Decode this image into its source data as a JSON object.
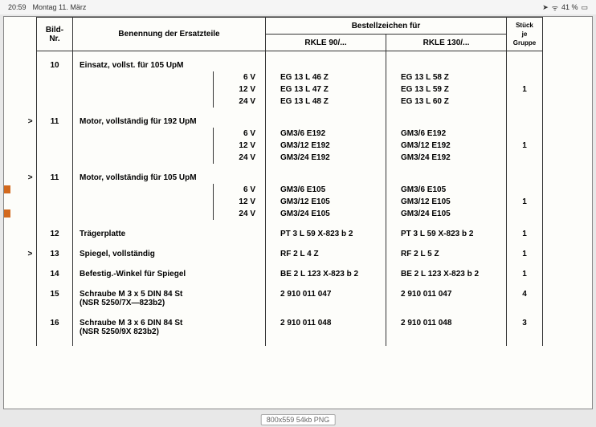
{
  "statusbar": {
    "time": "20:59",
    "date": "Montag 11. März",
    "battery": "41 %",
    "battery_icon": "■"
  },
  "header": {
    "bild_nr": "Bild-\nNr.",
    "benennung": "Benennung der Ersatzteile",
    "bestell": "Bestellzeichen für",
    "rkle90": "RKLE 90/...",
    "rkle130": "RKLE 130/...",
    "stuck": "Stück\nje\nGruppe"
  },
  "rows": [
    {
      "bild": "10",
      "ben": "Einsatz, vollst. für 105 UpM",
      "sub": [
        {
          "v": "6 V",
          "c90": "EG 13 L 46 Z",
          "c130": "EG 13 L 58 Z",
          "stk": ""
        },
        {
          "v": "12 V",
          "c90": "EG 13 L 47 Z",
          "c130": "EG 13 L 59 Z",
          "stk": "1"
        },
        {
          "v": "24 V",
          "c90": "EG 13 L 48 Z",
          "c130": "EG 13 L 60 Z",
          "stk": ""
        }
      ]
    },
    {
      "bild": "11",
      "arrow": true,
      "ben": "Motor, vollständig für 192 UpM",
      "sub": [
        {
          "v": "6 V",
          "c90": "GM3/6 E192",
          "c130": "GM3/6 E192",
          "stk": ""
        },
        {
          "v": "12 V",
          "c90": "GM3/12 E192",
          "c130": "GM3/12 E192",
          "stk": "1"
        },
        {
          "v": "24 V",
          "c90": "GM3/24 E192",
          "c130": "GM3/24 E192",
          "stk": ""
        }
      ]
    },
    {
      "bild": "11",
      "arrow": true,
      "ben": "Motor, vollständig für 105 UpM",
      "sub": [
        {
          "v": "6 V",
          "c90": "GM3/6 E105",
          "c130": "GM3/6 E105",
          "stk": ""
        },
        {
          "v": "12 V",
          "c90": "GM3/12 E105",
          "c130": "GM3/12 E105",
          "stk": "1"
        },
        {
          "v": "24 V",
          "c90": "GM3/24 E105",
          "c130": "GM3/24 E105",
          "stk": ""
        }
      ]
    },
    {
      "bild": "12",
      "ben": "Trägerplatte",
      "c90": "PT 3 L 59 X-823 b 2",
      "c130": "PT 3 L 59 X-823 b 2",
      "stk": "1"
    },
    {
      "bild": "13",
      "arrow": true,
      "ben": "Spiegel, vollständig",
      "c90": "RF 2 L 4 Z",
      "c130": "RF 2 L 5 Z",
      "stk": "1"
    },
    {
      "bild": "14",
      "ben": "Befestig.-Winkel für Spiegel",
      "c90": "BE 2 L 123 X-823 b 2",
      "c130": "BE 2 L 123 X-823 b 2",
      "stk": "1"
    },
    {
      "bild": "15",
      "ben": "Schraube M 3 x 5 DIN 84 St\n(NSR 5250/7X—823b2)",
      "c90": "2 910 011 047",
      "c130": "2 910 011 047",
      "stk": "4"
    },
    {
      "bild": "16",
      "ben": "Schraube M 3 x 6 DIN 84 St\n(NSR 5250/9X    823b2)",
      "c90": "2 910 011 048",
      "c130": "2 910 011 048",
      "stk": "3"
    }
  ],
  "footer": "800x559 54kb PNG"
}
